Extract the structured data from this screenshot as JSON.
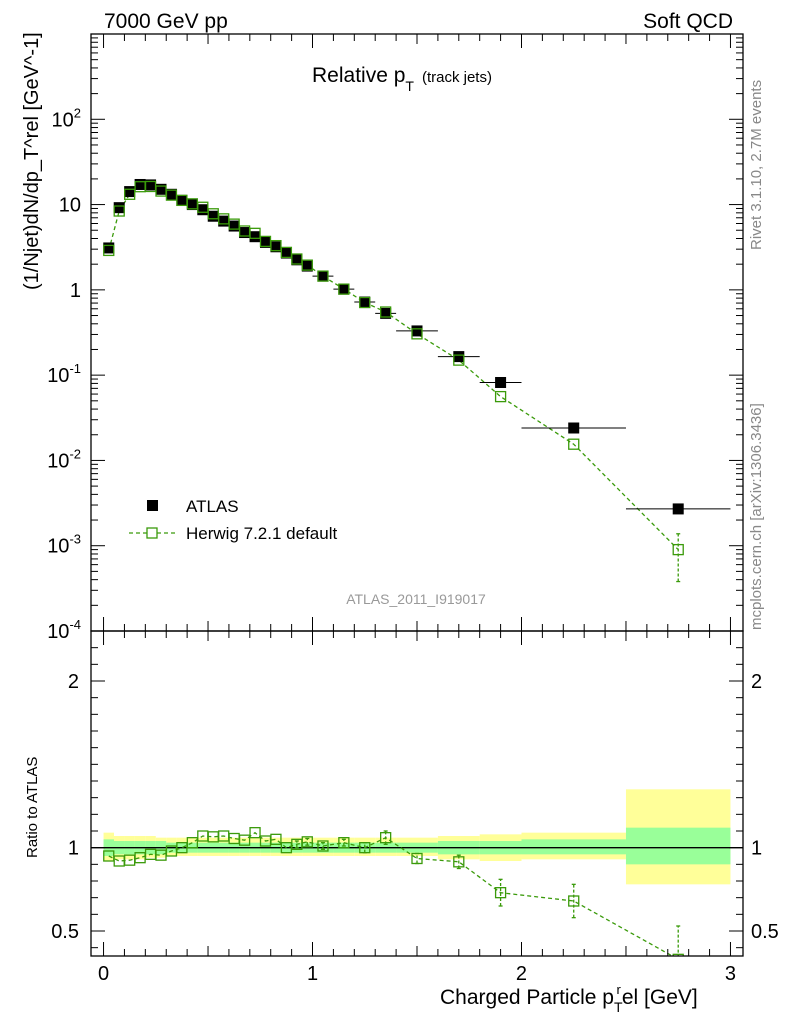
{
  "header": {
    "left": "7000 GeV pp",
    "right": "Soft QCD"
  },
  "side_labels": {
    "rivet": "Rivet 3.1.10,  2.7M events",
    "mcplots": "mcplots.cern.ch [arXiv:1306.3436]"
  },
  "chart_data": [
    {
      "type": "scatter",
      "title": "Relative p_T (track jets)",
      "title_main": "Relative p",
      "title_sub": "T",
      "title_note": "(track jets)",
      "ylabel": "(1/Njet)dN/dp_T^rel [GeV^-1]",
      "yscale": "log",
      "ylim": [
        0.0001,
        1000
      ],
      "xlim": [
        -0.06,
        3.06
      ],
      "analysis_tag": "ATLAS_2011_I919017",
      "y_tick_labels": [
        {
          "value": 0.0001,
          "base": "10",
          "exp": "-4"
        },
        {
          "value": 0.001,
          "base": "10",
          "exp": "-3"
        },
        {
          "value": 0.01,
          "base": "10",
          "exp": "-2"
        },
        {
          "value": 0.1,
          "base": "10",
          "exp": "-1"
        },
        {
          "value": 1,
          "base": "1",
          "exp": ""
        },
        {
          "value": 10,
          "base": "10",
          "exp": ""
        },
        {
          "value": 100,
          "base": "10",
          "exp": "2"
        }
      ],
      "legend": [
        {
          "name": "ATLAS",
          "marker": "filled-square",
          "color": "#000000"
        },
        {
          "name": "Herwig 7.2.1 default",
          "marker": "open-square-dashed",
          "color": "#3a9a0a"
        }
      ],
      "series": [
        {
          "name": "ATLAS",
          "x": [
            0.025,
            0.075,
            0.125,
            0.175,
            0.225,
            0.275,
            0.325,
            0.375,
            0.425,
            0.475,
            0.525,
            0.575,
            0.625,
            0.675,
            0.725,
            0.775,
            0.825,
            0.875,
            0.925,
            0.975,
            1.05,
            1.15,
            1.25,
            1.35,
            1.5,
            1.7,
            1.9,
            2.25,
            2.75
          ],
          "xerr": [
            0.025,
            0.025,
            0.025,
            0.025,
            0.025,
            0.025,
            0.025,
            0.025,
            0.025,
            0.025,
            0.025,
            0.025,
            0.025,
            0.025,
            0.025,
            0.025,
            0.025,
            0.025,
            0.025,
            0.025,
            0.05,
            0.05,
            0.05,
            0.05,
            0.1,
            0.1,
            0.1,
            0.25,
            0.25
          ],
          "y": [
            3.1,
            9.2,
            14.2,
            17.2,
            17.0,
            15.1,
            13.2,
            11.2,
            10.0,
            8.7,
            7.3,
            6.4,
            5.6,
            4.7,
            4.2,
            3.6,
            3.2,
            2.7,
            2.25,
            1.9,
            1.45,
            1.02,
            0.72,
            0.53,
            0.33,
            0.165,
            0.082,
            0.024,
            0.0027
          ]
        },
        {
          "name": "Herwig 7.2.1 default",
          "x": [
            0.025,
            0.075,
            0.125,
            0.175,
            0.225,
            0.275,
            0.325,
            0.375,
            0.425,
            0.475,
            0.525,
            0.575,
            0.625,
            0.675,
            0.725,
            0.775,
            0.825,
            0.875,
            0.925,
            0.975,
            1.05,
            1.15,
            1.25,
            1.35,
            1.5,
            1.7,
            1.9,
            2.25,
            2.75
          ],
          "xerr": [
            0.025,
            0.025,
            0.025,
            0.025,
            0.025,
            0.025,
            0.025,
            0.025,
            0.025,
            0.025,
            0.025,
            0.025,
            0.025,
            0.025,
            0.025,
            0.025,
            0.025,
            0.025,
            0.025,
            0.025,
            0.05,
            0.05,
            0.05,
            0.05,
            0.1,
            0.1,
            0.1,
            0.25,
            0.25
          ],
          "y": [
            2.9,
            8.4,
            13.2,
            16.2,
            16.3,
            14.4,
            12.9,
            11.2,
            10.2,
            9.3,
            7.8,
            6.8,
            5.9,
            4.9,
            4.6,
            3.7,
            3.3,
            2.75,
            2.3,
            1.95,
            1.45,
            1.02,
            0.71,
            0.55,
            0.305,
            0.15,
            0.056,
            0.0155,
            0.0009
          ],
          "yerr_low": [
            0,
            0,
            0,
            0,
            0,
            0,
            0,
            0,
            0,
            0,
            0,
            0,
            0,
            0,
            0,
            0,
            0,
            0,
            0,
            0,
            0,
            0,
            0,
            0,
            0,
            0,
            0,
            0,
            0.00052
          ],
          "yerr_high": [
            0,
            0,
            0,
            0,
            0,
            0,
            0,
            0,
            0,
            0,
            0,
            0,
            0,
            0,
            0,
            0,
            0,
            0,
            0,
            0,
            0,
            0,
            0,
            0,
            0,
            0,
            0,
            0,
            0.00048
          ]
        }
      ]
    },
    {
      "type": "scatter",
      "ylabel": "Ratio to ATLAS",
      "xlabel": "Charged Particle p_T^rel [GeV]",
      "xlabel_main": "Charged Particle p",
      "xlabel_sub": "T",
      "xlabel_tail": "el [GeV]",
      "xlabel_sup": "r",
      "xlim": [
        -0.06,
        3.06
      ],
      "ylim": [
        0.35,
        2.3
      ],
      "x_tick_labels": [
        "0",
        "1",
        "2",
        "3"
      ],
      "x_tick_values": [
        0,
        1,
        2,
        3
      ],
      "y_tick_labels": [
        "0.5",
        "1",
        "2"
      ],
      "y_tick_values": [
        0.5,
        1,
        2
      ],
      "reference_line": 1.0,
      "bands": {
        "x_edges": [
          0,
          0.05,
          0.1,
          0.15,
          0.2,
          0.25,
          0.3,
          0.35,
          0.4,
          0.45,
          0.5,
          0.55,
          0.6,
          0.65,
          0.7,
          0.75,
          0.8,
          0.85,
          0.9,
          0.95,
          1.0,
          1.1,
          1.2,
          1.3,
          1.4,
          1.6,
          1.8,
          2.0,
          2.5,
          3.0
        ],
        "green_low": [
          0.95,
          0.96,
          0.96,
          0.96,
          0.96,
          0.96,
          0.97,
          0.97,
          0.97,
          0.97,
          0.97,
          0.97,
          0.97,
          0.97,
          0.97,
          0.97,
          0.97,
          0.97,
          0.97,
          0.97,
          0.97,
          0.97,
          0.97,
          0.97,
          0.97,
          0.96,
          0.96,
          0.96,
          0.9
        ],
        "green_high": [
          1.05,
          1.04,
          1.04,
          1.04,
          1.04,
          1.04,
          1.03,
          1.03,
          1.03,
          1.03,
          1.03,
          1.03,
          1.03,
          1.03,
          1.03,
          1.03,
          1.03,
          1.03,
          1.03,
          1.03,
          1.03,
          1.03,
          1.03,
          1.03,
          1.03,
          1.04,
          1.04,
          1.05,
          1.12
        ],
        "yellow_low": [
          0.92,
          0.93,
          0.93,
          0.93,
          0.94,
          0.94,
          0.95,
          0.95,
          0.95,
          0.95,
          0.95,
          0.95,
          0.95,
          0.95,
          0.95,
          0.95,
          0.95,
          0.95,
          0.95,
          0.95,
          0.95,
          0.95,
          0.95,
          0.95,
          0.95,
          0.93,
          0.92,
          0.93,
          0.78
        ],
        "yellow_high": [
          1.09,
          1.07,
          1.07,
          1.07,
          1.07,
          1.06,
          1.06,
          1.06,
          1.06,
          1.06,
          1.06,
          1.06,
          1.06,
          1.06,
          1.06,
          1.06,
          1.06,
          1.06,
          1.06,
          1.06,
          1.06,
          1.06,
          1.06,
          1.06,
          1.06,
          1.07,
          1.08,
          1.09,
          1.35
        ]
      },
      "series": [
        {
          "name": "Herwig 7.2.1 default / ATLAS",
          "x": [
            0.025,
            0.075,
            0.125,
            0.175,
            0.225,
            0.275,
            0.325,
            0.375,
            0.425,
            0.475,
            0.525,
            0.575,
            0.625,
            0.675,
            0.725,
            0.775,
            0.825,
            0.875,
            0.925,
            0.975,
            1.05,
            1.15,
            1.25,
            1.35,
            1.5,
            1.7,
            1.9,
            2.25,
            2.75
          ],
          "y": [
            0.95,
            0.92,
            0.925,
            0.94,
            0.96,
            0.955,
            0.98,
            1.0,
            1.03,
            1.07,
            1.065,
            1.07,
            1.055,
            1.045,
            1.09,
            1.04,
            1.05,
            1.0,
            1.02,
            1.035,
            1.01,
            1.03,
            1.0,
            1.06,
            0.935,
            0.915,
            0.73,
            0.68,
            0.33
          ],
          "yerr": [
            0,
            0,
            0,
            0,
            0,
            0,
            0,
            0,
            0,
            0,
            0,
            0,
            0,
            0,
            0,
            0,
            0,
            0,
            0.02,
            0.02,
            0.02,
            0.02,
            0.03,
            0.04,
            0.03,
            0.04,
            0.08,
            0.1,
            0.2
          ]
        }
      ]
    }
  ]
}
